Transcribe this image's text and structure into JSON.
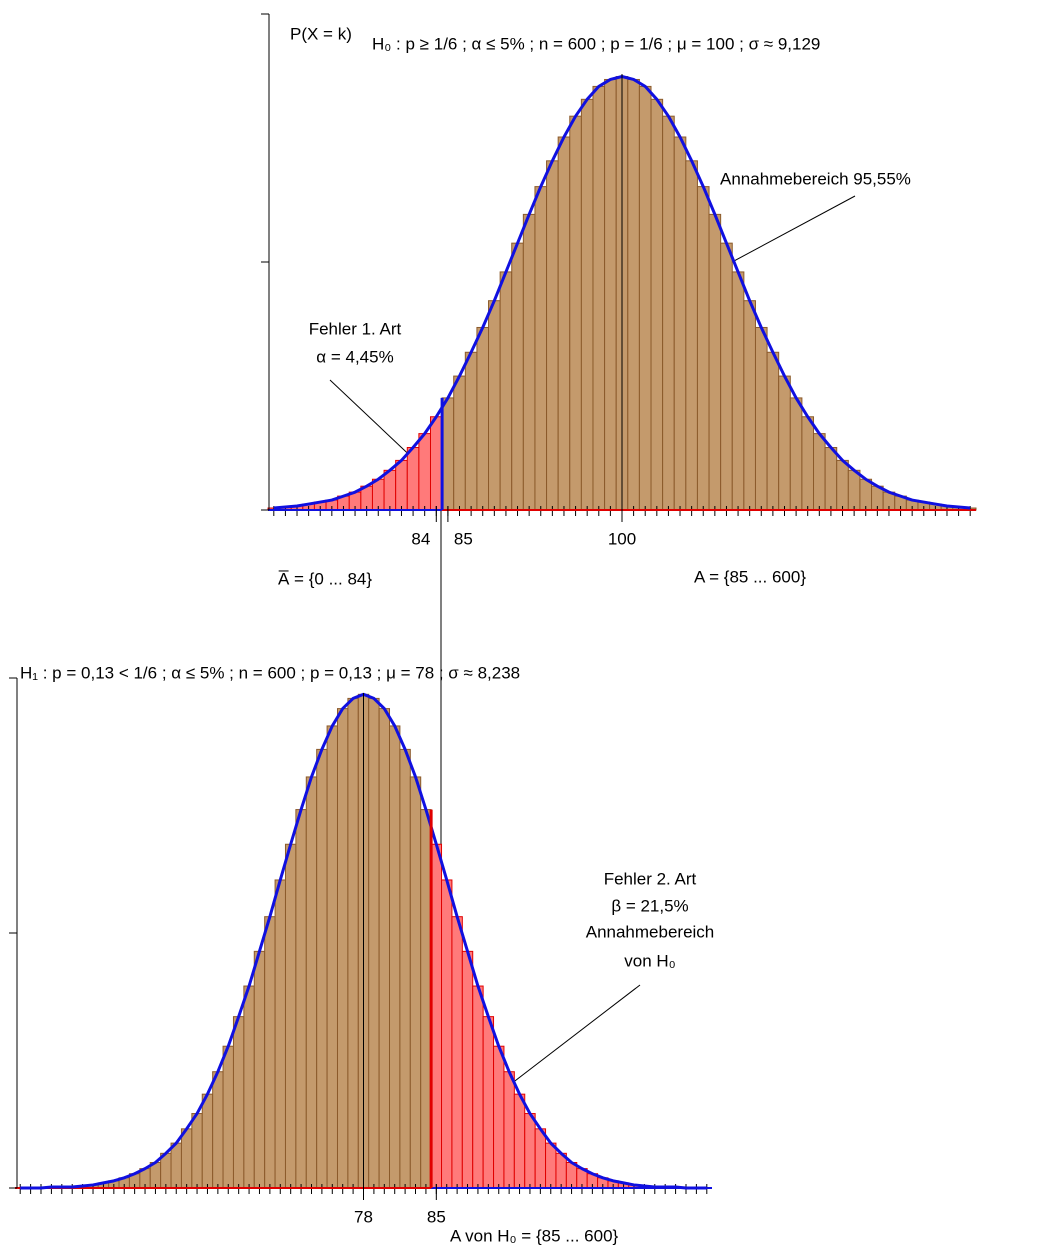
{
  "chart_data": [
    {
      "type": "bar",
      "axis_label": "P(X = k)",
      "title": "H₀ : p ≥ 1/6 ; α ≤ 5% ; n = 600 ; p = 1/6 ; μ = 100 ; σ ≈ 9,129",
      "annotations": [
        "Annahmebereich 95,55%",
        "Fehler 1. Art",
        "α = 4,45%",
        "A̅ = {0 ... 84}",
        "A = {85 ... 600}"
      ],
      "xlim": [
        69.5,
        130.5
      ],
      "xticks": [
        84,
        85,
        100
      ],
      "ylim": [
        0,
        0.05
      ],
      "yticks": [
        0,
        0.025,
        0.05
      ],
      "mean_line": 100,
      "curve_color": "#1010e0",
      "series": [
        {
          "color": "#ff7a7a",
          "edge": "#e00000",
          "x": [
            70,
            71,
            72,
            73,
            74,
            75,
            76,
            77,
            78,
            79,
            80,
            81,
            82,
            83,
            84
          ],
          "values": [
            0.0002,
            0.0003,
            0.0004,
            0.0006,
            0.0008,
            0.001,
            0.0014,
            0.0018,
            0.0024,
            0.0031,
            0.004,
            0.005,
            0.0063,
            0.0077,
            0.0094
          ]
        },
        {
          "color": "#c49a6c",
          "edge": "#8b5a2b",
          "x": [
            85,
            86,
            87,
            88,
            89,
            90,
            91,
            92,
            93,
            94,
            95,
            96,
            97,
            98,
            99,
            100,
            101,
            102,
            103,
            104,
            105,
            106,
            107,
            108,
            109,
            110,
            111,
            112,
            113,
            114,
            115,
            116,
            117,
            118,
            119,
            120,
            121,
            122,
            123,
            124,
            125,
            126,
            127,
            128,
            129,
            130
          ],
          "values": [
            0.0113,
            0.0135,
            0.0159,
            0.0184,
            0.0211,
            0.024,
            0.0269,
            0.0298,
            0.0326,
            0.0352,
            0.0376,
            0.0397,
            0.0414,
            0.0427,
            0.0434,
            0.0437,
            0.0434,
            0.0427,
            0.0414,
            0.0397,
            0.0376,
            0.0352,
            0.0326,
            0.0298,
            0.0269,
            0.024,
            0.0211,
            0.0184,
            0.0159,
            0.0135,
            0.0113,
            0.0094,
            0.0077,
            0.0063,
            0.005,
            0.004,
            0.0031,
            0.0024,
            0.0018,
            0.0014,
            0.001,
            0.0008,
            0.0006,
            0.0004,
            0.0003,
            0.0002
          ]
        }
      ]
    },
    {
      "type": "bar",
      "title": "H₁ : p = 0,13 < 1/6 ; α ≤ 5% ; n = 600 ; p = 0,13 ; μ = 78 ; σ ≈ 8,238",
      "annotations": [
        "Fehler 2. Art",
        "β = 21,5%",
        "Annahmebereich",
        "von H₀",
        "A von H₀ = {85 ... 600}"
      ],
      "xlim": [
        44.5,
        111.5
      ],
      "xticks": [
        78,
        85
      ],
      "ylim": [
        0,
        0.05
      ],
      "yticks": [
        0,
        0.025,
        0.05
      ],
      "mean_line": 78,
      "curve_color": "#1010e0",
      "series": [
        {
          "color": "#c49a6c",
          "edge": "#8b5a2b",
          "x": [
            45,
            46,
            47,
            48,
            49,
            50,
            51,
            52,
            53,
            54,
            55,
            56,
            57,
            58,
            59,
            60,
            61,
            62,
            63,
            64,
            65,
            66,
            67,
            68,
            69,
            70,
            71,
            72,
            73,
            74,
            75,
            76,
            77,
            78,
            79,
            80,
            81,
            82,
            83,
            84
          ],
          "values": [
            0,
            0,
            0,
            0.0001,
            0.0001,
            0.0001,
            0.0002,
            0.0003,
            0.0005,
            0.0007,
            0.001,
            0.0014,
            0.0019,
            0.0025,
            0.0034,
            0.0044,
            0.0058,
            0.0073,
            0.0092,
            0.0114,
            0.0139,
            0.0168,
            0.0198,
            0.0232,
            0.0266,
            0.0302,
            0.0337,
            0.0371,
            0.0403,
            0.043,
            0.0453,
            0.047,
            0.048,
            0.0484,
            0.048,
            0.047,
            0.0453,
            0.043,
            0.0403,
            0.0371
          ]
        },
        {
          "color": "#ff7a7a",
          "edge": "#e00000",
          "x": [
            85,
            86,
            87,
            88,
            89,
            90,
            91,
            92,
            93,
            94,
            95,
            96,
            97,
            98,
            99,
            100,
            101,
            102,
            103,
            104,
            105,
            106,
            107,
            108,
            109,
            110,
            111
          ],
          "values": [
            0.0337,
            0.0302,
            0.0266,
            0.0232,
            0.0198,
            0.0168,
            0.0139,
            0.0114,
            0.0092,
            0.0073,
            0.0058,
            0.0044,
            0.0034,
            0.0025,
            0.0019,
            0.0014,
            0.001,
            0.0007,
            0.0005,
            0.0003,
            0.0002,
            0.0001,
            0.0001,
            0.0001,
            0,
            0,
            0
          ]
        }
      ]
    }
  ]
}
